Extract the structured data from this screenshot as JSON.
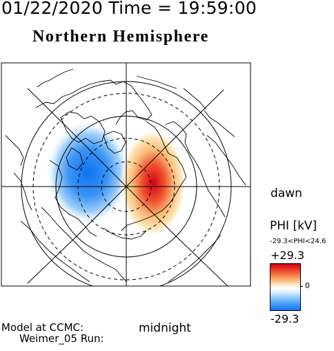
{
  "header": {
    "timestamp": "01/22/2020 Time = 19:59:00",
    "title": "Northern Hemisphere"
  },
  "map": {
    "orientation_right": "dawn",
    "orientation_bottom": "midnight",
    "positive_cell_color": "#d40015",
    "negative_cell_color": "#0d73f0"
  },
  "colorbar": {
    "title": "PHI [kV]",
    "range_text": "-29.3<PHI<24.6",
    "max_label": "+29.3",
    "zero_label": "0",
    "min_label": "-29.3"
  },
  "footer": {
    "model_line1": "Model at CCMC:",
    "model_line2": "Weimer_05 Run:"
  }
}
